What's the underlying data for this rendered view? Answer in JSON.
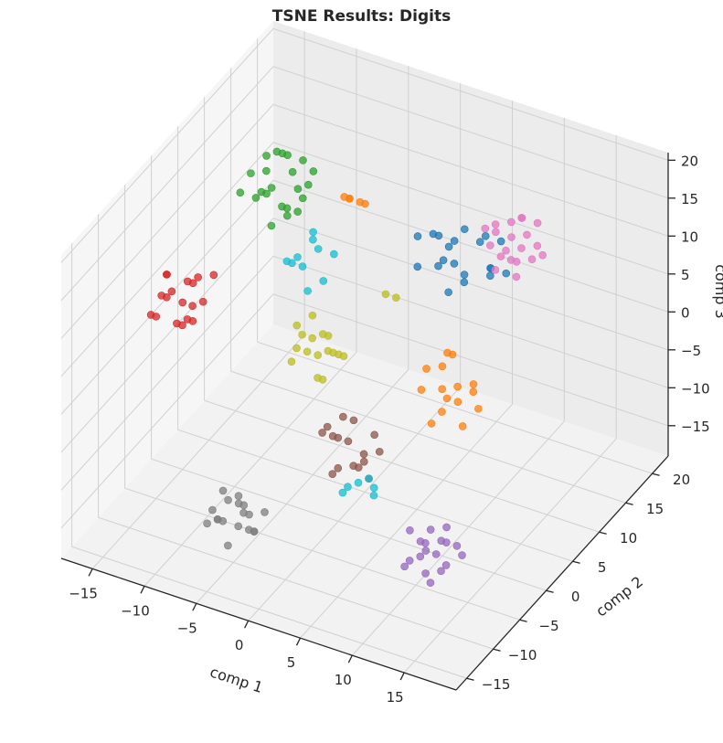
{
  "chart_data": {
    "type": "scatter",
    "projection": "3d",
    "title": "TSNE Results: Digits",
    "xlabel": "comp 1",
    "ylabel": "comp 2",
    "zlabel": "comp 3",
    "xlim": [
      -18,
      20
    ],
    "ylim": [
      -17,
      23
    ],
    "zlim": [
      -19,
      21
    ],
    "x_ticks": [
      -15,
      -10,
      -5,
      0,
      5,
      10,
      15
    ],
    "y_ticks": [
      -15,
      -10,
      -5,
      0,
      5,
      10,
      15,
      20
    ],
    "z_ticks": [
      -15,
      -10,
      -5,
      0,
      5,
      10,
      15,
      20
    ],
    "grid": true,
    "legend": "none",
    "series": [
      {
        "color": "#1f77b4",
        "points": [
          [
            4,
            13,
            9
          ],
          [
            6,
            12,
            7
          ],
          [
            2,
            15,
            8
          ],
          [
            7,
            15,
            6
          ],
          [
            5,
            10,
            10
          ],
          [
            3,
            12,
            11
          ],
          [
            8,
            13,
            8
          ],
          [
            6,
            16,
            9
          ],
          [
            4,
            14,
            6
          ],
          [
            9,
            11,
            9
          ],
          [
            2,
            11,
            7
          ],
          [
            7,
            10,
            8
          ],
          [
            5,
            14,
            11
          ],
          [
            3,
            16,
            7
          ],
          [
            8,
            15,
            10
          ],
          [
            6,
            9,
            7
          ],
          [
            1,
            13,
            9
          ],
          [
            9,
            14,
            7
          ],
          [
            4,
            11,
            8
          ],
          [
            7,
            13,
            11
          ]
        ]
      },
      {
        "color": "#ff7f0e",
        "points": [
          [
            11,
            -2,
            5
          ],
          [
            13,
            -3,
            7
          ],
          [
            12,
            -1,
            3
          ],
          [
            14,
            -2,
            6
          ],
          [
            10,
            -3,
            8
          ],
          [
            12,
            -4,
            4
          ],
          [
            13,
            0,
            5
          ],
          [
            11,
            -1,
            9
          ],
          [
            14,
            -4,
            3
          ],
          [
            10,
            0,
            6
          ],
          [
            12,
            -2,
            10
          ],
          [
            13,
            -5,
            7
          ],
          [
            11,
            -4,
            2
          ],
          [
            15,
            -3,
            5
          ],
          [
            9,
            -2,
            4
          ],
          [
            -3,
            7,
            17
          ],
          [
            -2,
            8,
            16
          ],
          [
            -1,
            7,
            17
          ],
          [
            -2,
            6,
            18
          ],
          [
            -3,
            8,
            16
          ]
        ]
      },
      {
        "color": "#2ca02c",
        "points": [
          [
            -10,
            7,
            15
          ],
          [
            -9,
            9,
            16
          ],
          [
            -11,
            8,
            13
          ],
          [
            -8,
            6,
            14
          ],
          [
            -10,
            10,
            17
          ],
          [
            -9,
            5,
            12
          ],
          [
            -12,
            7,
            16
          ],
          [
            -8,
            9,
            18
          ],
          [
            -11,
            6,
            14
          ],
          [
            -9,
            8,
            11
          ],
          [
            -10,
            6,
            18
          ],
          [
            -7,
            7,
            15
          ],
          [
            -12,
            9,
            12
          ],
          [
            -8,
            10,
            14
          ],
          [
            -11,
            11,
            16
          ],
          [
            -9,
            7,
            13
          ],
          [
            -10,
            8,
            19
          ],
          [
            -7,
            9,
            17
          ],
          [
            -12,
            5,
            15
          ],
          [
            -8,
            8,
            12
          ],
          [
            -11,
            8,
            18
          ],
          [
            -9,
            10,
            13
          ]
        ]
      },
      {
        "color": "#d62728",
        "points": [
          [
            -15,
            -3,
            6
          ],
          [
            -14,
            -1,
            7
          ],
          [
            -13,
            -3,
            4
          ],
          [
            -16,
            -2,
            5
          ],
          [
            -14,
            -4,
            8
          ],
          [
            -12,
            -2,
            6
          ],
          [
            -15,
            0,
            3
          ],
          [
            -13,
            -1,
            8
          ],
          [
            -16,
            -4,
            4
          ],
          [
            -14,
            -2,
            2
          ],
          [
            -12,
            -4,
            7
          ],
          [
            -15,
            -3,
            9
          ],
          [
            -13,
            -5,
            5
          ],
          [
            -14,
            0,
            6
          ],
          [
            -16,
            -1,
            7
          ],
          [
            -13,
            -2,
            3
          ],
          [
            -12,
            0,
            8
          ],
          [
            -15,
            -5,
            5
          ]
        ]
      },
      {
        "color": "#9467bd",
        "points": [
          [
            14,
            -12,
            -8
          ],
          [
            15,
            -10,
            -7
          ],
          [
            13,
            -13,
            -9
          ],
          [
            16,
            -11,
            -6
          ],
          [
            14,
            -9,
            -10
          ],
          [
            15,
            -13,
            -5
          ],
          [
            13,
            -10,
            -8
          ],
          [
            16,
            -12,
            -9
          ],
          [
            14,
            -14,
            -7
          ],
          [
            15,
            -9,
            -6
          ],
          [
            17,
            -10,
            -8
          ],
          [
            13,
            -12,
            -5
          ],
          [
            16,
            -14,
            -9
          ],
          [
            14,
            -11,
            -11
          ],
          [
            15,
            -12,
            -4
          ],
          [
            17,
            -13,
            -7
          ],
          [
            13,
            -9,
            -10
          ],
          [
            16,
            -9,
            -8
          ]
        ]
      },
      {
        "color": "#8c564b",
        "points": [
          [
            2,
            -4,
            -4
          ],
          [
            4,
            -5,
            -6
          ],
          [
            3,
            -3,
            -2
          ],
          [
            5,
            -6,
            -5
          ],
          [
            1,
            -5,
            -3
          ],
          [
            4,
            -3,
            -7
          ],
          [
            2,
            -6,
            -1
          ],
          [
            6,
            -4,
            -4
          ],
          [
            3,
            -7,
            -6
          ],
          [
            5,
            -3,
            -3
          ],
          [
            1,
            -3,
            -5
          ],
          [
            4,
            -6,
            -2
          ],
          [
            6,
            -6,
            -6
          ],
          [
            2,
            -4,
            -8
          ],
          [
            3,
            -5,
            0
          ],
          [
            5,
            -5,
            -4
          ]
        ]
      },
      {
        "color": "#e377c2",
        "points": [
          [
            10,
            12,
            12
          ],
          [
            11,
            14,
            13
          ],
          [
            9,
            13,
            10
          ],
          [
            12,
            13,
            11
          ],
          [
            10,
            15,
            14
          ],
          [
            11,
            11,
            12
          ],
          [
            9,
            11,
            13
          ],
          [
            12,
            15,
            10
          ],
          [
            10,
            13,
            15
          ],
          [
            11,
            12,
            9
          ],
          [
            8,
            14,
            12
          ],
          [
            12,
            11,
            14
          ],
          [
            9,
            15,
            11
          ],
          [
            11,
            16,
            13
          ],
          [
            10,
            10,
            11
          ],
          [
            8,
            12,
            14
          ],
          [
            12,
            14,
            12
          ],
          [
            10,
            14,
            9
          ],
          [
            9,
            12,
            15
          ],
          [
            11,
            13,
            16
          ]
        ]
      },
      {
        "color": "#7f7f7f",
        "points": [
          [
            -5,
            -12,
            -12
          ],
          [
            -4,
            -10,
            -11
          ],
          [
            -6,
            -11,
            -13
          ],
          [
            -3,
            -12,
            -10
          ],
          [
            -5,
            -9,
            -12
          ],
          [
            -4,
            -13,
            -14
          ],
          [
            -6,
            -10,
            -10
          ],
          [
            -3,
            -11,
            -13
          ],
          [
            -5,
            -13,
            -11
          ],
          [
            -4,
            -11,
            -9
          ],
          [
            -2,
            -12,
            -12
          ],
          [
            -6,
            -12,
            -11
          ],
          [
            -3,
            -10,
            -14
          ],
          [
            -5,
            -11,
            -10
          ],
          [
            -4,
            -9,
            -13
          ],
          [
            -2,
            -10,
            -11
          ],
          [
            -6,
            -13,
            -12
          ],
          [
            -3,
            -13,
            -11
          ]
        ]
      },
      {
        "color": "#bcbd22",
        "points": [
          [
            -3,
            0,
            2
          ],
          [
            -2,
            1,
            4
          ],
          [
            -4,
            -1,
            1
          ],
          [
            -1,
            0,
            3
          ],
          [
            -3,
            2,
            0
          ],
          [
            -2,
            -1,
            5
          ],
          [
            -4,
            1,
            3
          ],
          [
            -1,
            2,
            1
          ],
          [
            -3,
            -2,
            4
          ],
          [
            -2,
            0,
            -1
          ],
          [
            0,
            1,
            2
          ],
          [
            -4,
            0,
            5
          ],
          [
            -1,
            -1,
            0
          ],
          [
            -3,
            1,
            6
          ],
          [
            -2,
            2,
            3
          ],
          [
            0,
            -1,
            4
          ],
          [
            2,
            5,
            8
          ],
          [
            3,
            5,
            8
          ]
        ]
      },
      {
        "color": "#17becf",
        "points": [
          [
            -6,
            5,
            8
          ],
          [
            -5,
            6,
            10
          ],
          [
            -7,
            4,
            9
          ],
          [
            -4,
            5,
            7
          ],
          [
            -6,
            7,
            11
          ],
          [
            -5,
            4,
            6
          ],
          [
            -7,
            6,
            8
          ],
          [
            -4,
            7,
            9
          ],
          [
            -6,
            3,
            10
          ],
          [
            -5,
            5,
            12
          ],
          [
            6,
            -8,
            -5
          ],
          [
            7,
            -8,
            -4
          ],
          [
            5,
            -9,
            -6
          ],
          [
            8,
            -9,
            -5
          ],
          [
            6,
            -10,
            -4
          ],
          [
            7,
            -7,
            -6
          ]
        ]
      }
    ]
  }
}
